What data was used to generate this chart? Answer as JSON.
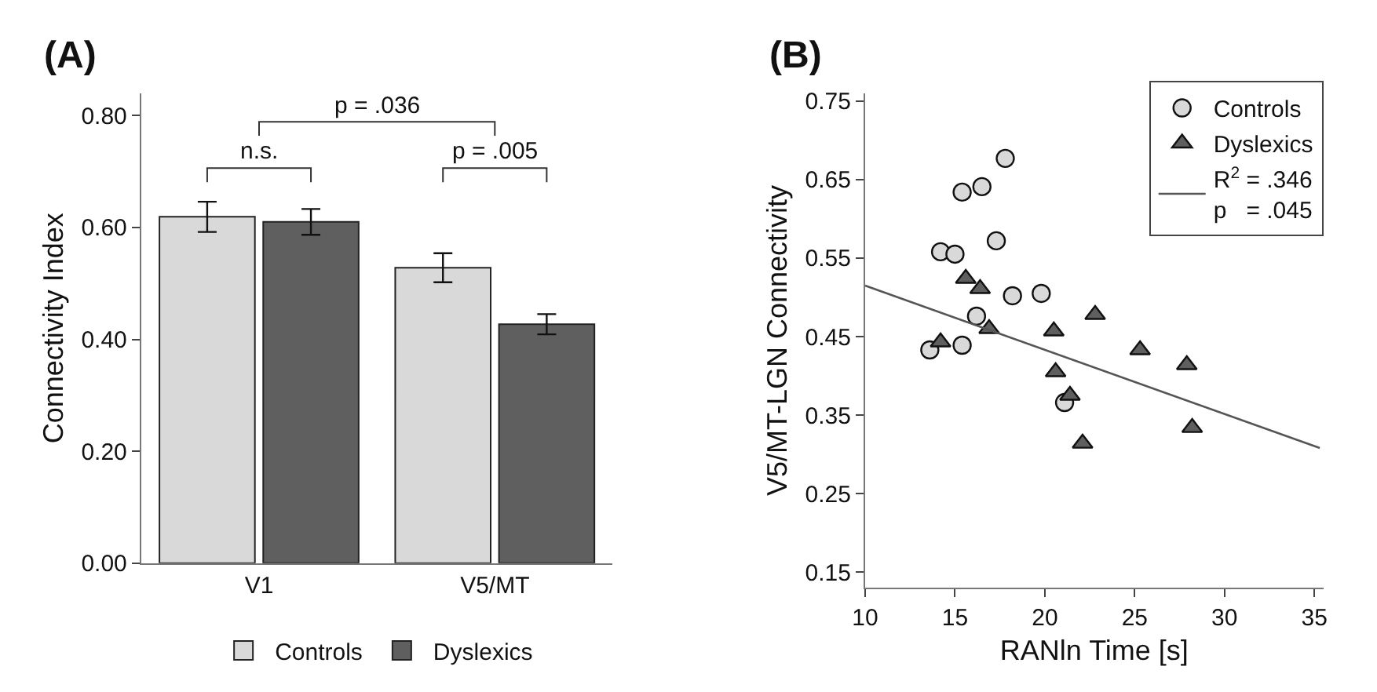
{
  "chart_data": [
    {
      "type": "bar",
      "title": "(A)",
      "ylabel": "Connectivity Index",
      "categories": [
        "V1",
        "V5/MT"
      ],
      "series": [
        {
          "name": "Controls",
          "color": "#d9d9d9",
          "values": [
            0.619,
            0.528
          ],
          "errors": [
            0.027,
            0.026
          ]
        },
        {
          "name": "Dyslexics",
          "color": "#5f5f5f",
          "values": [
            0.61,
            0.427
          ],
          "errors": [
            0.023,
            0.018
          ]
        }
      ],
      "ylim": [
        0,
        0.84
      ],
      "yticks": [
        {
          "value": 0,
          "label": "0.00"
        },
        {
          "value": 0.2,
          "label": "0.20"
        },
        {
          "value": 0.4,
          "label": "0.40"
        },
        {
          "value": 0.6,
          "label": "0.60"
        },
        {
          "value": 0.8,
          "label": "0.80"
        }
      ],
      "annotations": [
        "n.s.",
        "p = .005",
        "p = .036"
      ],
      "legend": "bottom"
    },
    {
      "type": "scatter",
      "title": "(B)",
      "xlabel": "RANln Time [s]",
      "ylabel": "V5/MT-LGN Connectivity",
      "series": [
        {
          "name": "Controls",
          "color": "#d9d9d9",
          "marker": "circle",
          "x": [
            13.6,
            15.4,
            14.2,
            15.0,
            15.4,
            16.5,
            17.8,
            17.3,
            16.2,
            18.2,
            19.8,
            21.1
          ],
          "values": [
            0.433,
            0.439,
            0.558,
            0.555,
            0.634,
            0.641,
            0.677,
            0.572,
            0.476,
            0.502,
            0.505,
            0.366
          ]
        },
        {
          "name": "Dyslexics",
          "color": "#5f5f5f",
          "marker": "triangle",
          "x": [
            14.2,
            15.6,
            16.4,
            16.9,
            20.5,
            22.8,
            20.6,
            21.4,
            22.1,
            25.3,
            27.9,
            28.2
          ],
          "values": [
            0.443,
            0.524,
            0.511,
            0.46,
            0.457,
            0.478,
            0.405,
            0.375,
            0.314,
            0.433,
            0.414,
            0.334
          ]
        },
        {
          "name": "R$^{2}$ = .346\np   = .045",
          "type": "line",
          "color": "#555555",
          "x": [
            10,
            35.3
          ],
          "values": [
            0.515,
            0.308
          ]
        }
      ],
      "xlim": [
        10,
        35.5
      ],
      "xticks": [
        10,
        15,
        20,
        25,
        30,
        35
      ],
      "ylim": [
        0.13,
        0.76
      ],
      "yticks": [
        0.15,
        0.25,
        0.35,
        0.45,
        0.55,
        0.65,
        0.75
      ],
      "legend": "top right"
    }
  ]
}
